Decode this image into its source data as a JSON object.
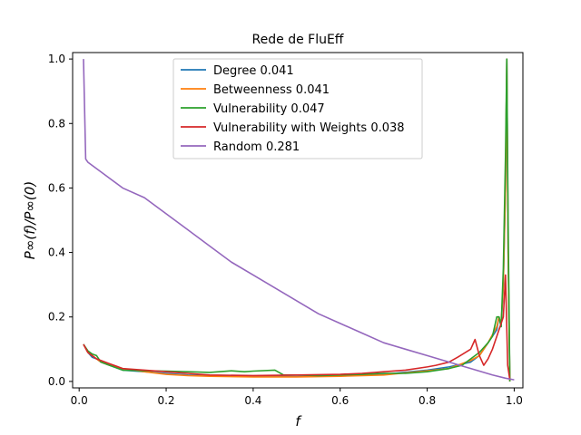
{
  "chart_data": {
    "type": "line",
    "title": "Rede de FluEff",
    "xlabel": "f",
    "ylabel": "P∞(f)/P∞(0)",
    "xlim": [
      -0.015,
      1.02
    ],
    "ylim": [
      -0.02,
      1.02
    ],
    "xticks": [
      0.0,
      0.2,
      0.4,
      0.6,
      0.8,
      1.0
    ],
    "xtick_labels": [
      "0.0",
      "0.2",
      "0.4",
      "0.6",
      "0.8",
      "1.0"
    ],
    "yticks": [
      0.0,
      0.2,
      0.4,
      0.6,
      0.8,
      1.0
    ],
    "ytick_labels": [
      "0.0",
      "0.2",
      "0.4",
      "0.6",
      "0.8",
      "1.0"
    ],
    "grid": false,
    "legend_position": "top-center",
    "series": [
      {
        "name": "Degree 0.041",
        "color": "#1f77b4",
        "x": [
          0.01,
          0.02,
          0.03,
          0.04,
          0.05,
          0.07,
          0.1,
          0.15,
          0.2,
          0.25,
          0.3,
          0.4,
          0.5,
          0.6,
          0.7,
          0.8,
          0.85,
          0.9,
          0.92,
          0.94,
          0.96,
          0.965,
          0.97,
          0.975,
          0.98,
          0.983,
          0.986,
          0.99
        ],
        "y": [
          0.115,
          0.09,
          0.075,
          0.07,
          0.06,
          0.05,
          0.035,
          0.03,
          0.025,
          0.02,
          0.018,
          0.016,
          0.015,
          0.017,
          0.022,
          0.035,
          0.045,
          0.06,
          0.08,
          0.12,
          0.16,
          0.2,
          0.17,
          0.3,
          0.6,
          1.0,
          0.4,
          0.0
        ]
      },
      {
        "name": "Betweenness 0.041",
        "color": "#ff7f0e",
        "x": [
          0.01,
          0.02,
          0.03,
          0.04,
          0.05,
          0.07,
          0.1,
          0.15,
          0.2,
          0.25,
          0.3,
          0.4,
          0.5,
          0.6,
          0.7,
          0.8,
          0.85,
          0.9,
          0.92,
          0.94,
          0.96,
          0.965,
          0.97,
          0.975,
          0.98,
          0.983,
          0.986,
          0.99
        ],
        "y": [
          0.115,
          0.09,
          0.08,
          0.07,
          0.06,
          0.05,
          0.04,
          0.03,
          0.022,
          0.018,
          0.016,
          0.014,
          0.014,
          0.016,
          0.02,
          0.033,
          0.04,
          0.065,
          0.08,
          0.12,
          0.17,
          0.2,
          0.18,
          0.3,
          0.6,
          1.0,
          0.4,
          0.0
        ]
      },
      {
        "name": "Vulnerability 0.047",
        "color": "#2ca02c",
        "x": [
          0.01,
          0.02,
          0.03,
          0.04,
          0.05,
          0.07,
          0.1,
          0.15,
          0.2,
          0.25,
          0.3,
          0.35,
          0.38,
          0.4,
          0.45,
          0.47,
          0.5,
          0.55,
          0.6,
          0.65,
          0.7,
          0.75,
          0.8,
          0.85,
          0.88,
          0.9,
          0.92,
          0.94,
          0.95,
          0.96,
          0.965,
          0.97,
          0.975,
          0.98,
          0.983,
          0.986,
          0.99
        ],
        "y": [
          0.115,
          0.095,
          0.085,
          0.08,
          0.06,
          0.05,
          0.035,
          0.033,
          0.032,
          0.03,
          0.028,
          0.033,
          0.03,
          0.032,
          0.035,
          0.02,
          0.02,
          0.018,
          0.02,
          0.022,
          0.025,
          0.025,
          0.03,
          0.04,
          0.05,
          0.07,
          0.09,
          0.12,
          0.14,
          0.2,
          0.2,
          0.17,
          0.35,
          0.7,
          1.0,
          0.5,
          0.0
        ]
      },
      {
        "name": "Vulnerability with Weights 0.038",
        "color": "#d62728",
        "x": [
          0.01,
          0.02,
          0.03,
          0.04,
          0.05,
          0.07,
          0.1,
          0.15,
          0.2,
          0.25,
          0.3,
          0.4,
          0.5,
          0.6,
          0.65,
          0.7,
          0.75,
          0.8,
          0.82,
          0.85,
          0.87,
          0.9,
          0.91,
          0.92,
          0.93,
          0.94,
          0.95,
          0.96,
          0.97,
          0.975,
          0.98,
          0.985,
          0.99
        ],
        "y": [
          0.115,
          0.09,
          0.08,
          0.07,
          0.065,
          0.055,
          0.04,
          0.035,
          0.03,
          0.025,
          0.02,
          0.018,
          0.02,
          0.022,
          0.025,
          0.03,
          0.035,
          0.045,
          0.05,
          0.06,
          0.075,
          0.1,
          0.13,
          0.08,
          0.05,
          0.07,
          0.1,
          0.14,
          0.18,
          0.2,
          0.33,
          0.05,
          0.005
        ]
      },
      {
        "name": "Random 0.281",
        "color": "#9467bd",
        "x": [
          0.01,
          0.015,
          0.02,
          0.05,
          0.07,
          0.1,
          0.15,
          0.2,
          0.25,
          0.3,
          0.35,
          0.4,
          0.45,
          0.5,
          0.55,
          0.6,
          0.65,
          0.7,
          0.75,
          0.8,
          0.85,
          0.9,
          0.95,
          0.98,
          1.0
        ],
        "y": [
          1.0,
          0.69,
          0.68,
          0.65,
          0.63,
          0.6,
          0.57,
          0.52,
          0.47,
          0.42,
          0.37,
          0.33,
          0.29,
          0.25,
          0.21,
          0.18,
          0.15,
          0.12,
          0.1,
          0.08,
          0.06,
          0.04,
          0.02,
          0.01,
          0.005
        ]
      }
    ]
  }
}
